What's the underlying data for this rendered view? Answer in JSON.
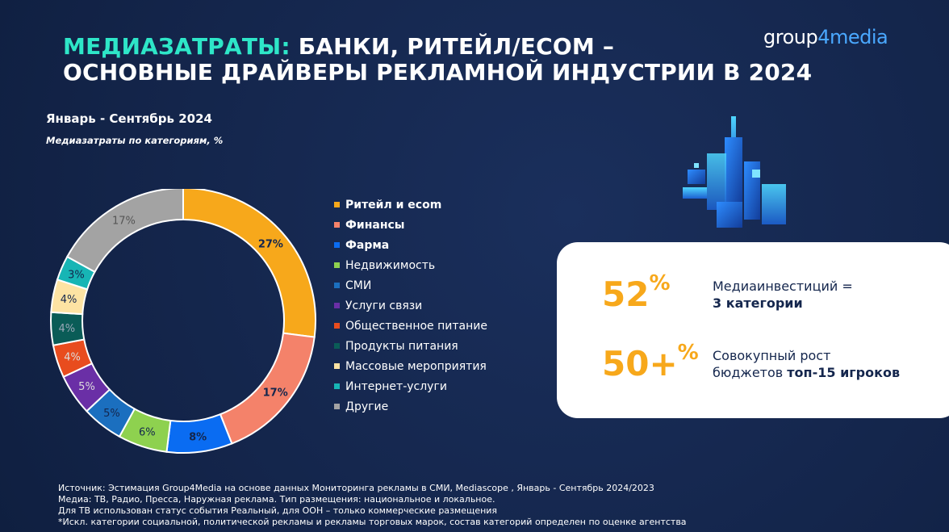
{
  "title": {
    "accent": "МЕДИАЗАТРАТЫ:",
    "line1_rest": " БАНКИ, РИТЕЙЛ/ECOM –",
    "line2": "ОСНОВНЫЕ ДРАЙВЕРЫ РЕКЛАМНОЙ ИНДУСТРИИ В 2024"
  },
  "logo": {
    "part1": "group",
    "part2": "4media"
  },
  "period": "Январь - Сентябрь 2024",
  "subtitle": "Медиазатраты по категориям, %",
  "chart_data": {
    "type": "pie",
    "donut": true,
    "categories": [
      "Ритейл и ecom",
      "Финансы",
      "Фарма",
      "Недвижимость",
      "СМИ",
      "Услуги связи",
      "Общественное питание",
      "Продукты питания",
      "Массовые мероприятия",
      "Интернет-услуги",
      "Другие"
    ],
    "values": [
      27,
      17,
      8,
      6,
      5,
      5,
      4,
      4,
      4,
      3,
      17
    ],
    "value_labels": [
      "27%",
      "17%",
      "8%",
      "6%",
      "5%",
      "5%",
      "4%",
      "4%",
      "4%",
      "3%",
      "17%"
    ],
    "colors": [
      "#f7a81b",
      "#f4826a",
      "#0a6cf2",
      "#8ed14f",
      "#1b6fbf",
      "#6a2fa6",
      "#e84c1e",
      "#0a5c57",
      "#fde3a3",
      "#17b5b5",
      "#a3a3a3"
    ],
    "bold_labels": [
      true,
      true,
      true,
      false,
      false,
      false,
      false,
      false,
      false,
      false,
      false
    ],
    "label_colors": [
      "#14264d",
      "#14264d",
      "#14264d",
      "#14264d",
      "#14264d",
      "#dddddd",
      "#dddddd",
      "#9aa8b8",
      "#14264d",
      "#14264d",
      "#555555"
    ],
    "legend_placement": "right"
  },
  "card": {
    "stat1_value": "52",
    "stat1_sup": "%",
    "stat1_line1": "Медиаинвестиций =",
    "stat1_line2": "3 категории",
    "stat2_value": "50+",
    "stat2_sup": "%",
    "stat2_line1": "Совокупный рост",
    "stat2_line2a": "бюджетов ",
    "stat2_line2b": "топ-15 игроков"
  },
  "source": [
    "Источник: Эстимация Group4Media на основе данных Мониторинга рекламы в СМИ, Mediascope , Январь - Сентябрь 2024/2023",
    "Медиа: ТВ, Радио, Пресса, Наружная реклама. Тип размещения: национальное и локальное.",
    "Для ТВ использован статус события Реальный, для OOH – только коммерческие размещения",
    "*Искл. категории социальной, политической рекламы и рекламы торговых марок, состав категорий определен по оценке агентства"
  ]
}
